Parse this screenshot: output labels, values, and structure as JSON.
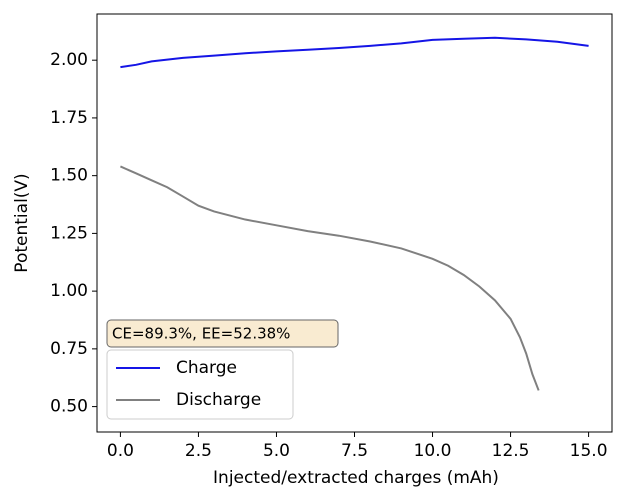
{
  "chart_data": {
    "type": "line",
    "xlabel": "Injected/extracted charges (mAh)",
    "ylabel": "Potential(V)",
    "annotation": "CE=89.3%, EE=52.38%",
    "xlim": [
      -0.75,
      15.75
    ],
    "ylim": [
      0.39,
      2.2
    ],
    "xticks": [
      {
        "value": 0,
        "label": "0.0"
      },
      2.5,
      {
        "value": 5,
        "label": "5.0"
      },
      7.5,
      {
        "value": 10,
        "label": "10.0"
      },
      12.5,
      {
        "value": 15,
        "label": "15.0"
      }
    ],
    "yticks": [
      {
        "value": 0.5,
        "label": "0.50"
      },
      0.75,
      {
        "value": 1,
        "label": "1.00"
      },
      1.25,
      {
        "value": 1.5,
        "label": "1.50"
      },
      1.75,
      {
        "value": 2,
        "label": "2.00"
      }
    ],
    "legend": "lower left",
    "series": [
      {
        "name": "Charge",
        "color": "#1515e6",
        "x": [
          0,
          0.5,
          1,
          2,
          3,
          4,
          5,
          6,
          7,
          8,
          9,
          10,
          11,
          12,
          13,
          14,
          15
        ],
        "values": [
          1.97,
          1.98,
          1.995,
          2.01,
          2.02,
          2.03,
          2.038,
          2.045,
          2.053,
          2.062,
          2.073,
          2.088,
          2.093,
          2.097,
          2.09,
          2.08,
          2.062
        ]
      },
      {
        "name": "Discharge",
        "color": "#808080",
        "x": [
          0,
          0.5,
          1,
          1.5,
          2,
          2.5,
          3,
          4,
          5,
          6,
          7,
          8,
          9,
          10,
          10.5,
          11,
          11.5,
          12,
          12.5,
          12.8,
          13,
          13.2,
          13.4
        ],
        "values": [
          1.54,
          1.51,
          1.48,
          1.45,
          1.41,
          1.37,
          1.345,
          1.31,
          1.285,
          1.26,
          1.24,
          1.215,
          1.185,
          1.14,
          1.11,
          1.07,
          1.02,
          0.96,
          0.88,
          0.8,
          0.73,
          0.64,
          0.57
        ]
      }
    ]
  }
}
